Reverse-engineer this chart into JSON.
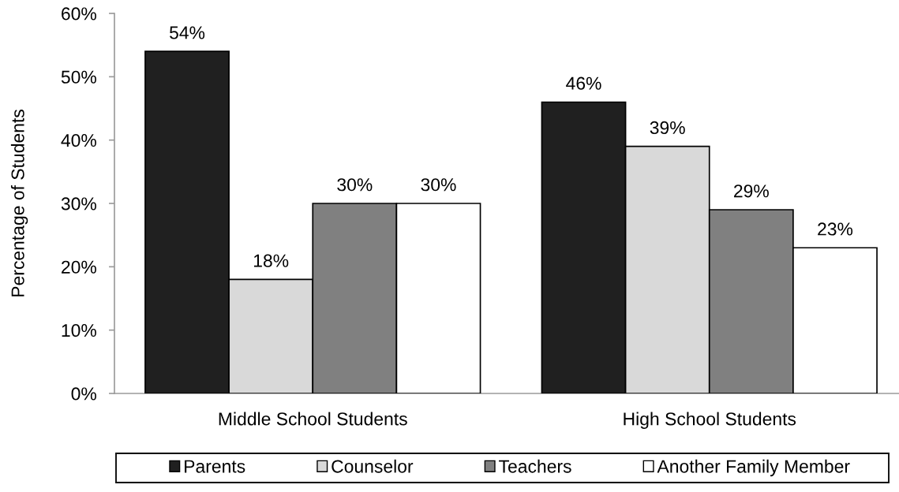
{
  "chart_data": {
    "type": "bar",
    "ylabel": "Percentage of Students",
    "categories": [
      "Middle School Students",
      "High School Students"
    ],
    "series": [
      {
        "name": "Parents",
        "color": "#202020",
        "values": [
          54,
          46
        ],
        "value_labels": [
          "54%",
          "46%"
        ]
      },
      {
        "name": "Counselor",
        "color": "#d9d9d9",
        "values": [
          18,
          39
        ],
        "value_labels": [
          "18%",
          "39%"
        ]
      },
      {
        "name": "Teachers",
        "color": "#808080",
        "values": [
          30,
          29
        ],
        "value_labels": [
          "30%",
          "29%"
        ]
      },
      {
        "name": "Another Family Member",
        "color": "#ffffff",
        "values": [
          30,
          23
        ],
        "value_labels": [
          "30%",
          "23%"
        ]
      }
    ],
    "ylim": [
      0,
      60
    ],
    "yticks": [
      {
        "value": 0,
        "label": "0%"
      },
      {
        "value": 10,
        "label": "10%"
      },
      {
        "value": 20,
        "label": "20%"
      },
      {
        "value": 30,
        "label": "30%"
      },
      {
        "value": 40,
        "label": "40%"
      },
      {
        "value": 50,
        "label": "50%"
      },
      {
        "value": 60,
        "label": "60%"
      }
    ],
    "grid": false,
    "legend": "bottom"
  }
}
